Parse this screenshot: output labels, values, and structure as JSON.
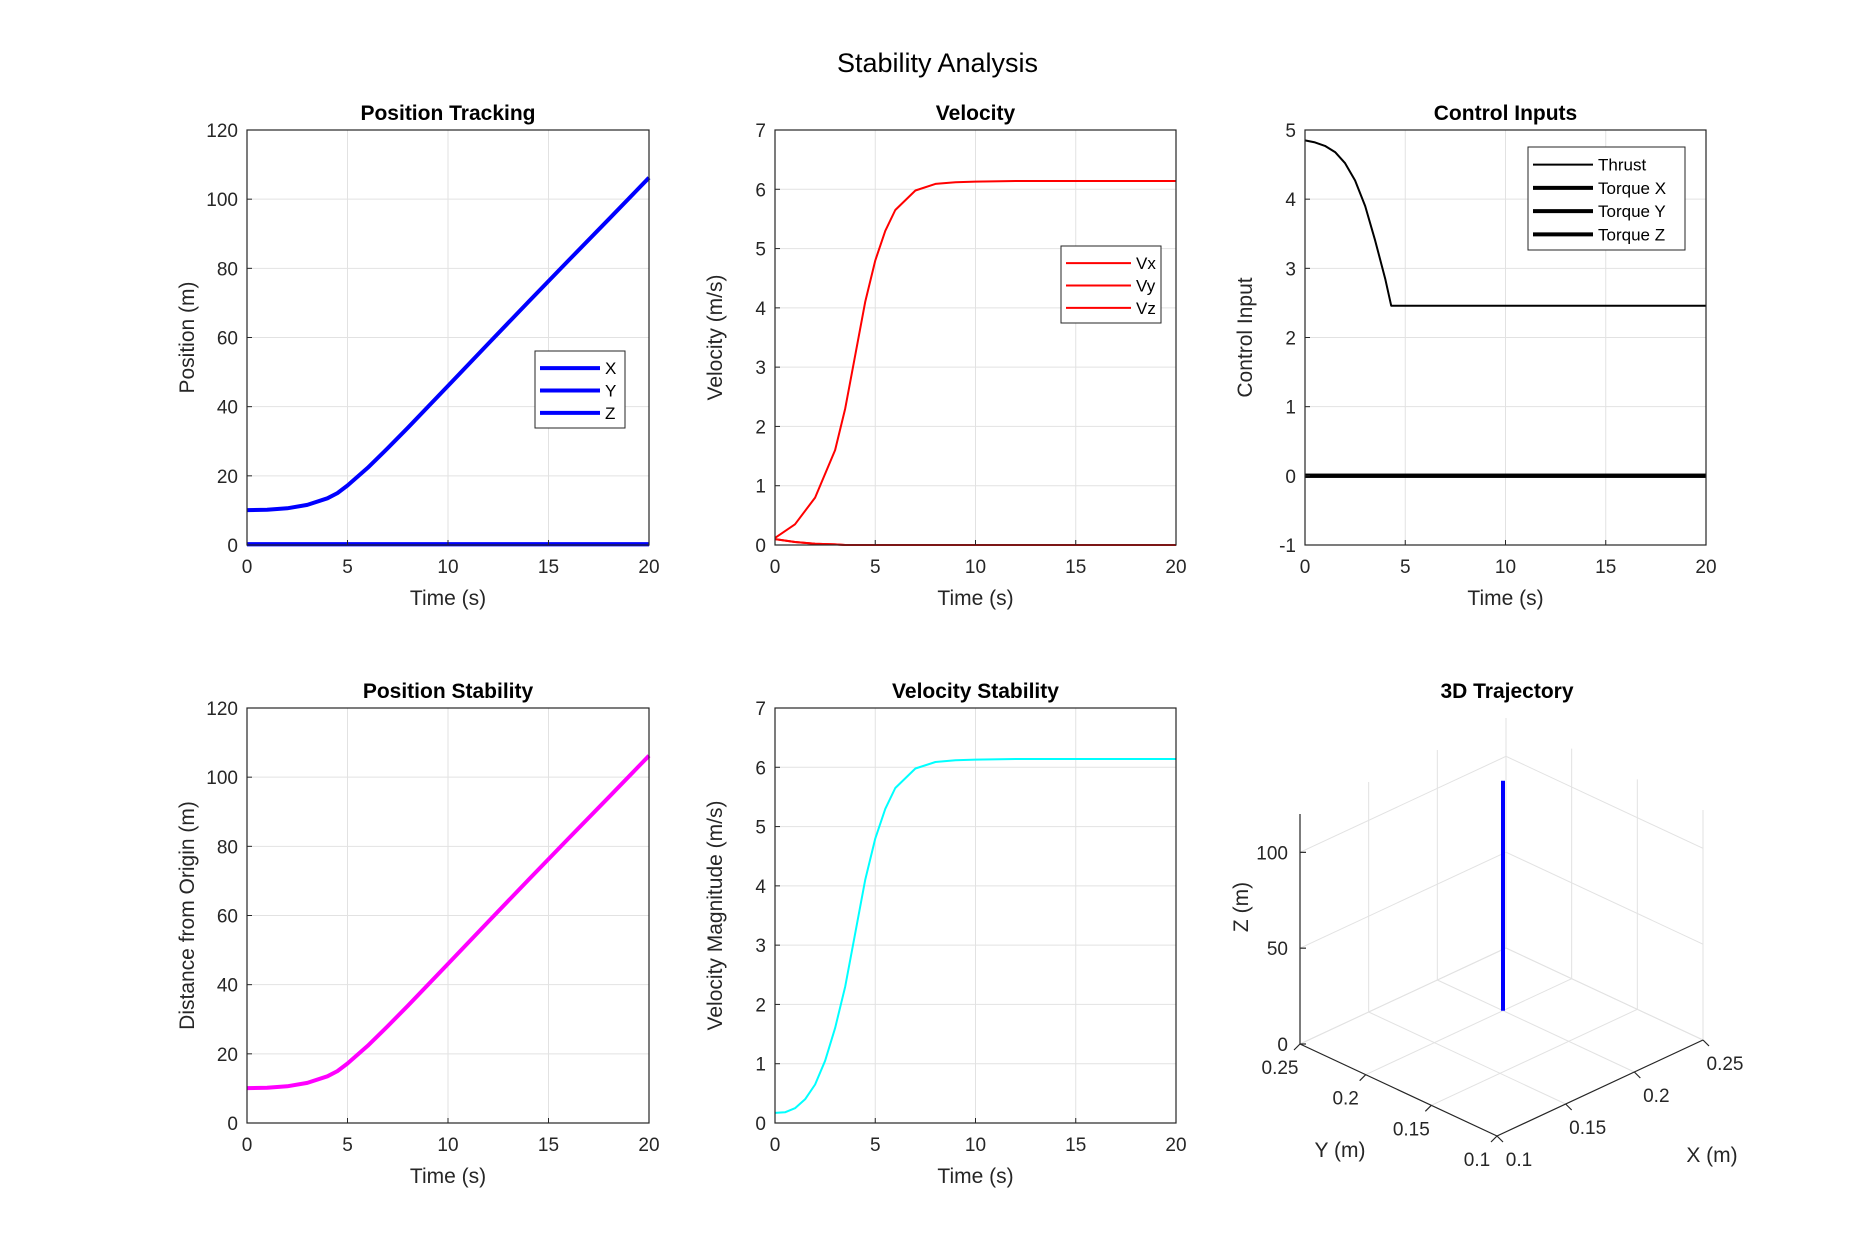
{
  "figure": {
    "title": "Stability Analysis"
  },
  "chart_data": [
    {
      "id": "position_tracking",
      "type": "line",
      "title": "Position Tracking",
      "xlabel": "Time (s)",
      "ylabel": "Position (m)",
      "xlim": [
        0,
        20
      ],
      "ylim": [
        0,
        120
      ],
      "xticks": [
        0,
        5,
        10,
        15,
        20
      ],
      "yticks": [
        0,
        20,
        40,
        60,
        80,
        100,
        120
      ],
      "grid": true,
      "legend_position": "right-middle",
      "x": [
        0,
        1,
        2,
        3,
        4,
        4.5,
        5,
        6,
        7,
        8,
        10,
        12,
        14,
        16,
        18,
        20
      ],
      "series": [
        {
          "name": "X",
          "color": "#0000ff",
          "width": 4,
          "values": [
            0.2,
            0.2,
            0.2,
            0.2,
            0.2,
            0.2,
            0.2,
            0.2,
            0.2,
            0.2,
            0.2,
            0.2,
            0.2,
            0.2,
            0.2,
            0.2
          ]
        },
        {
          "name": "Y",
          "color": "#0000ff",
          "width": 4,
          "values": [
            0.2,
            0.2,
            0.2,
            0.2,
            0.2,
            0.2,
            0.2,
            0.2,
            0.2,
            0.2,
            0.2,
            0.2,
            0.2,
            0.2,
            0.2,
            0.2
          ]
        },
        {
          "name": "Z",
          "color": "#0000ff",
          "width": 4,
          "values": [
            10.1,
            10.2,
            10.6,
            11.6,
            13.5,
            15.0,
            17.2,
            22.3,
            28.0,
            33.9,
            46.0,
            58.2,
            70.3,
            82.3,
            94.2,
            106.2
          ]
        }
      ]
    },
    {
      "id": "velocity",
      "type": "line",
      "title": "Velocity",
      "xlabel": "Time (s)",
      "ylabel": "Velocity (m/s)",
      "xlim": [
        0,
        20
      ],
      "ylim": [
        0,
        7
      ],
      "xticks": [
        0,
        5,
        10,
        15,
        20
      ],
      "yticks": [
        0,
        1,
        2,
        3,
        4,
        5,
        6,
        7
      ],
      "grid": true,
      "legend_position": "top-right",
      "x": [
        0,
        1,
        2,
        3,
        3.5,
        4,
        4.5,
        5,
        5.5,
        6,
        7,
        8,
        9,
        10,
        12,
        15,
        20
      ],
      "series": [
        {
          "name": "Vx",
          "color": "#ff0000",
          "width": 2,
          "values": [
            0.1,
            0.05,
            0.02,
            0.01,
            0.0,
            0.0,
            0.0,
            0.0,
            0.0,
            0.0,
            0.0,
            0.0,
            0.0,
            0.0,
            0.0,
            0.0,
            0.0
          ]
        },
        {
          "name": "Vy",
          "color": "#ff0000",
          "width": 2,
          "values": [
            0.1,
            0.05,
            0.02,
            0.01,
            0.0,
            0.0,
            0.0,
            0.0,
            0.0,
            0.0,
            0.0,
            0.0,
            0.0,
            0.0,
            0.0,
            0.0,
            0.0
          ]
        },
        {
          "name": "Vz",
          "color": "#ff0000",
          "width": 2,
          "values": [
            0.12,
            0.35,
            0.8,
            1.6,
            2.3,
            3.2,
            4.1,
            4.8,
            5.3,
            5.65,
            5.98,
            6.09,
            6.12,
            6.13,
            6.14,
            6.14,
            6.14
          ]
        }
      ]
    },
    {
      "id": "control_inputs",
      "type": "line",
      "title": "Control Inputs",
      "xlabel": "Time (s)",
      "ylabel": "Control Input",
      "xlim": [
        0,
        20
      ],
      "ylim": [
        -1,
        5
      ],
      "xticks": [
        0,
        5,
        10,
        15,
        20
      ],
      "yticks": [
        -1,
        0,
        1,
        2,
        3,
        4,
        5
      ],
      "grid": true,
      "legend_position": "top-right",
      "x": [
        0,
        0.5,
        1,
        1.5,
        2,
        2.5,
        3,
        3.5,
        4,
        4.3,
        5,
        10,
        15,
        20
      ],
      "series": [
        {
          "name": "Thrust",
          "color": "#000000",
          "width": 2,
          "values": [
            4.85,
            4.82,
            4.77,
            4.68,
            4.52,
            4.27,
            3.9,
            3.4,
            2.85,
            2.46,
            2.46,
            2.46,
            2.46,
            2.46
          ]
        },
        {
          "name": "Torque X",
          "color": "#000000",
          "width": 4,
          "values": [
            0,
            0,
            0,
            0,
            0,
            0,
            0,
            0,
            0,
            0,
            0,
            0,
            0,
            0
          ]
        },
        {
          "name": "Torque Y",
          "color": "#000000",
          "width": 4,
          "values": [
            0,
            0,
            0,
            0,
            0,
            0,
            0,
            0,
            0,
            0,
            0,
            0,
            0,
            0
          ]
        },
        {
          "name": "Torque Z",
          "color": "#000000",
          "width": 4,
          "values": [
            0,
            0,
            0,
            0,
            0,
            0,
            0,
            0,
            0,
            0,
            0,
            0,
            0,
            0
          ]
        }
      ]
    },
    {
      "id": "position_stability",
      "type": "line",
      "title": "Position Stability",
      "xlabel": "Time (s)",
      "ylabel": "Distance from Origin (m)",
      "xlim": [
        0,
        20
      ],
      "ylim": [
        0,
        120
      ],
      "xticks": [
        0,
        5,
        10,
        15,
        20
      ],
      "yticks": [
        0,
        20,
        40,
        60,
        80,
        100,
        120
      ],
      "grid": true,
      "x": [
        0,
        1,
        2,
        3,
        4,
        4.5,
        5,
        6,
        7,
        8,
        10,
        12,
        14,
        16,
        18,
        20
      ],
      "series": [
        {
          "color": "#ff00ff",
          "width": 4,
          "values": [
            10.1,
            10.2,
            10.6,
            11.6,
            13.5,
            15.0,
            17.2,
            22.3,
            28.0,
            33.9,
            46.0,
            58.2,
            70.3,
            82.3,
            94.2,
            106.2
          ]
        }
      ]
    },
    {
      "id": "velocity_stability",
      "type": "line",
      "title": "Velocity Stability",
      "xlabel": "Time (s)",
      "ylabel": "Velocity Magnitude (m/s)",
      "xlim": [
        0,
        20
      ],
      "ylim": [
        0,
        7
      ],
      "xticks": [
        0,
        5,
        10,
        15,
        20
      ],
      "yticks": [
        0,
        1,
        2,
        3,
        4,
        5,
        6,
        7
      ],
      "grid": true,
      "x": [
        0,
        0.5,
        1,
        1.5,
        2,
        2.5,
        3,
        3.5,
        4,
        4.5,
        5,
        5.5,
        6,
        7,
        8,
        9,
        10,
        12,
        15,
        20
      ],
      "series": [
        {
          "color": "#00ffff",
          "width": 2,
          "values": [
            0.17,
            0.18,
            0.25,
            0.4,
            0.65,
            1.05,
            1.6,
            2.3,
            3.2,
            4.1,
            4.8,
            5.3,
            5.65,
            5.98,
            6.09,
            6.12,
            6.13,
            6.14,
            6.14,
            6.14
          ]
        }
      ]
    },
    {
      "id": "trajectory_3d",
      "type": "line3d",
      "title": "3D Trajectory",
      "xlabel": "X (m)",
      "ylabel": "Y (m)",
      "zlabel": "Z (m)",
      "xlim": [
        0.1,
        0.25
      ],
      "ylim": [
        0.1,
        0.25
      ],
      "zlim": [
        0,
        120
      ],
      "xtick_labels": [
        "0.1",
        "0.15",
        "0.2",
        "0.25"
      ],
      "ytick_labels": [
        "0.1",
        "0.15",
        "0.2",
        "0.25"
      ],
      "ztick_labels": [
        "0",
        "50",
        "100"
      ],
      "grid": true,
      "points": [
        {
          "x": 0.2,
          "y": 0.2,
          "z": 0
        },
        {
          "x": 0.2,
          "y": 0.2,
          "z": 10
        },
        {
          "x": 0.2,
          "y": 0.2,
          "z": 20
        },
        {
          "x": 0.2,
          "y": 0.2,
          "z": 40
        },
        {
          "x": 0.2,
          "y": 0.2,
          "z": 60
        },
        {
          "x": 0.2,
          "y": 0.2,
          "z": 80
        },
        {
          "x": 0.2,
          "y": 0.2,
          "z": 100
        },
        {
          "x": 0.2,
          "y": 0.2,
          "z": 120
        }
      ],
      "line_color": "#0000ff"
    }
  ]
}
